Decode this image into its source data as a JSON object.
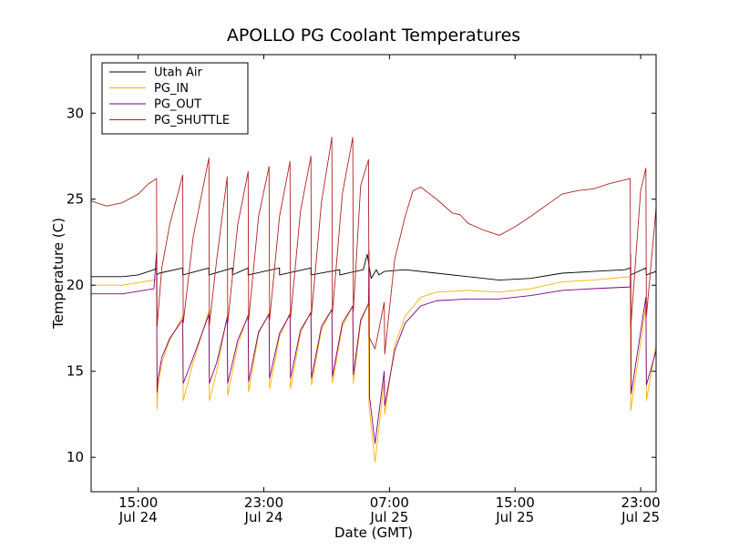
{
  "chart_data": {
    "type": "line",
    "title": "APOLLO PG Coolant Temperatures",
    "xlabel": "Date (GMT)",
    "ylabel": "Temperature (C)",
    "xlim": [
      "2009-07-24 12:00",
      "2009-07-25 23:59"
    ],
    "ylim": [
      8,
      33.4
    ],
    "grid": false,
    "legend_position": "top-left",
    "x_ticks": [
      {
        "x": "2009-07-24 15:00",
        "label": [
          "15:00",
          "Jul 24"
        ]
      },
      {
        "x": "2009-07-24 23:00",
        "label": [
          "23:00",
          "Jul 24"
        ]
      },
      {
        "x": "2009-07-25 07:00",
        "label": [
          "07:00",
          "Jul 25"
        ]
      },
      {
        "x": "2009-07-25 15:00",
        "label": [
          "15:00",
          "Jul 25"
        ]
      },
      {
        "x": "2009-07-25 23:00",
        "label": [
          "23:00",
          "Jul 25"
        ]
      }
    ],
    "y_ticks": [
      {
        "y": 10,
        "label": "10"
      },
      {
        "y": 15,
        "label": "15"
      },
      {
        "y": 20,
        "label": "20"
      },
      {
        "y": 25,
        "label": "25"
      },
      {
        "y": 30,
        "label": "30"
      }
    ],
    "x_point_format": "YYYY-MM-DD HH:MM",
    "series": [
      {
        "name": "Utah Air",
        "color": "#000000",
        "points": [
          [
            "2009-07-24 12:00",
            20.5
          ],
          [
            "2009-07-24 13:00",
            20.5
          ],
          [
            "2009-07-24 14:00",
            20.5
          ],
          [
            "2009-07-24 15:00",
            20.6
          ],
          [
            "2009-07-24 16:00",
            20.9
          ],
          [
            "2009-07-24 16:10",
            21.0
          ],
          [
            "2009-07-24 16:10",
            20.6
          ],
          [
            "2009-07-24 16:20",
            20.7
          ],
          [
            "2009-07-24 17:50",
            21.0
          ],
          [
            "2009-07-24 17:50",
            20.6
          ],
          [
            "2009-07-24 19:30",
            21.0
          ],
          [
            "2009-07-24 19:30",
            20.6
          ],
          [
            "2009-07-24 21:00",
            21.0
          ],
          [
            "2009-07-24 21:00",
            20.6
          ],
          [
            "2009-07-24 22:00",
            21.0
          ],
          [
            "2009-07-24 22:00",
            20.6
          ],
          [
            "2009-07-25 00:00",
            21.0
          ],
          [
            "2009-07-25 00:00",
            20.6
          ],
          [
            "2009-07-25 02:00",
            21.0
          ],
          [
            "2009-07-25 02:00",
            20.6
          ],
          [
            "2009-07-25 03:50",
            20.9
          ],
          [
            "2009-07-25 03:50",
            20.6
          ],
          [
            "2009-07-25 05:20",
            20.9
          ],
          [
            "2009-07-25 05:35",
            21.8
          ],
          [
            "2009-07-25 05:50",
            20.4
          ],
          [
            "2009-07-25 06:10",
            20.9
          ],
          [
            "2009-07-25 06:20",
            20.6
          ],
          [
            "2009-07-25 06:40",
            20.8
          ],
          [
            "2009-07-25 08:00",
            20.9
          ],
          [
            "2009-07-25 10:00",
            20.7
          ],
          [
            "2009-07-25 12:00",
            20.5
          ],
          [
            "2009-07-25 14:00",
            20.3
          ],
          [
            "2009-07-25 16:00",
            20.4
          ],
          [
            "2009-07-25 18:00",
            20.7
          ],
          [
            "2009-07-25 20:00",
            20.8
          ],
          [
            "2009-07-25 22:00",
            20.9
          ],
          [
            "2009-07-25 22:20",
            21.0
          ],
          [
            "2009-07-25 22:22",
            20.6
          ],
          [
            "2009-07-25 23:20",
            21.0
          ],
          [
            "2009-07-25 23:22",
            20.6
          ],
          [
            "2009-07-25 23:59",
            20.8
          ]
        ]
      },
      {
        "name": "PG_IN",
        "color": "#ffb000",
        "points": [
          [
            "2009-07-24 12:00",
            20.0
          ],
          [
            "2009-07-24 14:00",
            20.0
          ],
          [
            "2009-07-24 16:00",
            20.3
          ],
          [
            "2009-07-24 16:10",
            20.4
          ],
          [
            "2009-07-24 16:12",
            12.8
          ],
          [
            "2009-07-24 16:15",
            14.0
          ],
          [
            "2009-07-24 16:30",
            15.5
          ],
          [
            "2009-07-24 17:00",
            16.8
          ],
          [
            "2009-07-24 17:50",
            18.2
          ],
          [
            "2009-07-24 17:52",
            13.3
          ],
          [
            "2009-07-24 18:30",
            15.5
          ],
          [
            "2009-07-24 19:30",
            18.5
          ],
          [
            "2009-07-24 19:32",
            13.3
          ],
          [
            "2009-07-24 20:00",
            15.0
          ],
          [
            "2009-07-24 20:40",
            18.2
          ],
          [
            "2009-07-24 20:42",
            13.6
          ],
          [
            "2009-07-24 21:20",
            16.5
          ],
          [
            "2009-07-24 22:00",
            18.3
          ],
          [
            "2009-07-24 22:02",
            13.8
          ],
          [
            "2009-07-24 22:40",
            17.2
          ],
          [
            "2009-07-24 23:20",
            18.4
          ],
          [
            "2009-07-24 23:22",
            14.0
          ],
          [
            "2009-07-25 00:00",
            17.0
          ],
          [
            "2009-07-25 00:40",
            18.4
          ],
          [
            "2009-07-25 00:42",
            14.0
          ],
          [
            "2009-07-25 01:20",
            17.2
          ],
          [
            "2009-07-25 02:00",
            18.5
          ],
          [
            "2009-07-25 02:02",
            14.2
          ],
          [
            "2009-07-25 02:40",
            17.4
          ],
          [
            "2009-07-25 03:20",
            18.6
          ],
          [
            "2009-07-25 03:22",
            14.3
          ],
          [
            "2009-07-25 04:00",
            17.6
          ],
          [
            "2009-07-25 04:40",
            18.8
          ],
          [
            "2009-07-25 04:42",
            14.3
          ],
          [
            "2009-07-25 05:10",
            17.8
          ],
          [
            "2009-07-25 05:40",
            19.0
          ],
          [
            "2009-07-25 05:42",
            13.0
          ],
          [
            "2009-07-25 06:05",
            9.7
          ],
          [
            "2009-07-25 06:40",
            14.5
          ],
          [
            "2009-07-25 06:42",
            12.5
          ],
          [
            "2009-07-25 07:20",
            16.5
          ],
          [
            "2009-07-25 08:00",
            18.2
          ],
          [
            "2009-07-25 09:00",
            19.3
          ],
          [
            "2009-07-25 10:00",
            19.6
          ],
          [
            "2009-07-25 12:00",
            19.7
          ],
          [
            "2009-07-25 14:00",
            19.6
          ],
          [
            "2009-07-25 16:00",
            19.8
          ],
          [
            "2009-07-25 18:00",
            20.2
          ],
          [
            "2009-07-25 20:00",
            20.3
          ],
          [
            "2009-07-25 22:20",
            20.5
          ],
          [
            "2009-07-25 22:22",
            12.7
          ],
          [
            "2009-07-25 23:20",
            18.8
          ],
          [
            "2009-07-25 23:22",
            13.3
          ],
          [
            "2009-07-25 23:59",
            16.5
          ]
        ]
      },
      {
        "name": "PG_OUT",
        "color": "#800080",
        "points": [
          [
            "2009-07-24 12:00",
            19.5
          ],
          [
            "2009-07-24 14:00",
            19.5
          ],
          [
            "2009-07-24 16:00",
            19.8
          ],
          [
            "2009-07-24 16:10",
            21.9
          ],
          [
            "2009-07-24 16:12",
            13.8
          ],
          [
            "2009-07-24 16:15",
            14.5
          ],
          [
            "2009-07-24 16:30",
            15.8
          ],
          [
            "2009-07-24 17:00",
            16.9
          ],
          [
            "2009-07-24 17:50",
            18.0
          ],
          [
            "2009-07-24 17:52",
            14.3
          ],
          [
            "2009-07-24 18:30",
            15.8
          ],
          [
            "2009-07-24 19:30",
            18.3
          ],
          [
            "2009-07-24 19:32",
            14.3
          ],
          [
            "2009-07-24 20:00",
            15.5
          ],
          [
            "2009-07-24 20:40",
            18.1
          ],
          [
            "2009-07-24 20:42",
            14.3
          ],
          [
            "2009-07-24 21:20",
            16.8
          ],
          [
            "2009-07-24 22:00",
            18.2
          ],
          [
            "2009-07-24 22:02",
            14.4
          ],
          [
            "2009-07-24 22:40",
            17.3
          ],
          [
            "2009-07-24 23:20",
            18.3
          ],
          [
            "2009-07-24 23:22",
            14.6
          ],
          [
            "2009-07-25 00:00",
            17.2
          ],
          [
            "2009-07-25 00:40",
            18.3
          ],
          [
            "2009-07-25 00:42",
            14.6
          ],
          [
            "2009-07-25 01:20",
            17.4
          ],
          [
            "2009-07-25 02:00",
            18.4
          ],
          [
            "2009-07-25 02:02",
            14.6
          ],
          [
            "2009-07-25 02:40",
            17.6
          ],
          [
            "2009-07-25 03:20",
            18.6
          ],
          [
            "2009-07-25 03:22",
            14.7
          ],
          [
            "2009-07-25 04:00",
            17.8
          ],
          [
            "2009-07-25 04:40",
            18.8
          ],
          [
            "2009-07-25 04:42",
            14.8
          ],
          [
            "2009-07-25 05:10",
            18.0
          ],
          [
            "2009-07-25 05:40",
            18.9
          ],
          [
            "2009-07-25 05:42",
            22.0
          ],
          [
            "2009-07-25 05:44",
            13.5
          ],
          [
            "2009-07-25 06:05",
            10.8
          ],
          [
            "2009-07-25 06:40",
            15.0
          ],
          [
            "2009-07-25 06:42",
            13.0
          ],
          [
            "2009-07-25 07:20",
            16.2
          ],
          [
            "2009-07-25 08:00",
            17.8
          ],
          [
            "2009-07-25 09:00",
            18.8
          ],
          [
            "2009-07-25 10:00",
            19.1
          ],
          [
            "2009-07-25 12:00",
            19.2
          ],
          [
            "2009-07-25 14:00",
            19.2
          ],
          [
            "2009-07-25 16:00",
            19.4
          ],
          [
            "2009-07-25 18:00",
            19.7
          ],
          [
            "2009-07-25 20:00",
            19.8
          ],
          [
            "2009-07-25 22:20",
            19.9
          ],
          [
            "2009-07-25 22:22",
            21.8
          ],
          [
            "2009-07-25 22:24",
            13.7
          ],
          [
            "2009-07-25 23:20",
            19.3
          ],
          [
            "2009-07-25 23:22",
            14.2
          ],
          [
            "2009-07-25 23:59",
            16.2
          ]
        ]
      },
      {
        "name": "PG_SHUTTLE",
        "color": "#b22222",
        "points": [
          [
            "2009-07-24 12:00",
            24.9
          ],
          [
            "2009-07-24 13:00",
            24.6
          ],
          [
            "2009-07-24 14:00",
            24.8
          ],
          [
            "2009-07-24 15:00",
            25.3
          ],
          [
            "2009-07-24 15:40",
            25.9
          ],
          [
            "2009-07-24 16:10",
            26.2
          ],
          [
            "2009-07-24 16:12",
            17.6
          ],
          [
            "2009-07-24 16:30",
            21.0
          ],
          [
            "2009-07-24 17:00",
            23.5
          ],
          [
            "2009-07-24 17:50",
            26.4
          ],
          [
            "2009-07-24 17:52",
            17.8
          ],
          [
            "2009-07-24 18:30",
            22.8
          ],
          [
            "2009-07-24 19:30",
            27.4
          ],
          [
            "2009-07-24 19:32",
            17.7
          ],
          [
            "2009-07-24 20:00",
            21.5
          ],
          [
            "2009-07-24 20:40",
            26.3
          ],
          [
            "2009-07-24 20:42",
            17.8
          ],
          [
            "2009-07-24 21:20",
            23.5
          ],
          [
            "2009-07-24 22:00",
            26.6
          ],
          [
            "2009-07-24 22:02",
            18.0
          ],
          [
            "2009-07-24 22:40",
            24.0
          ],
          [
            "2009-07-24 23:20",
            26.9
          ],
          [
            "2009-07-24 23:22",
            18.0
          ],
          [
            "2009-07-25 00:00",
            24.0
          ],
          [
            "2009-07-25 00:40",
            27.2
          ],
          [
            "2009-07-25 00:42",
            18.1
          ],
          [
            "2009-07-25 01:20",
            24.3
          ],
          [
            "2009-07-25 02:00",
            27.5
          ],
          [
            "2009-07-25 02:02",
            18.3
          ],
          [
            "2009-07-25 02:40",
            24.8
          ],
          [
            "2009-07-25 03:20",
            28.6
          ],
          [
            "2009-07-25 03:22",
            18.4
          ],
          [
            "2009-07-25 04:00",
            25.3
          ],
          [
            "2009-07-25 04:40",
            28.6
          ],
          [
            "2009-07-25 04:42",
            18.5
          ],
          [
            "2009-07-25 05:10",
            25.8
          ],
          [
            "2009-07-25 05:40",
            27.3
          ],
          [
            "2009-07-25 05:42",
            17.0
          ],
          [
            "2009-07-25 06:05",
            16.3
          ],
          [
            "2009-07-25 06:40",
            19.0
          ],
          [
            "2009-07-25 06:42",
            16.0
          ],
          [
            "2009-07-25 07:20",
            21.5
          ],
          [
            "2009-07-25 08:00",
            24.0
          ],
          [
            "2009-07-25 08:30",
            25.5
          ],
          [
            "2009-07-25 09:00",
            25.7
          ],
          [
            "2009-07-25 10:00",
            25.0
          ],
          [
            "2009-07-25 11:00",
            24.2
          ],
          [
            "2009-07-25 11:30",
            24.1
          ],
          [
            "2009-07-25 12:00",
            23.6
          ],
          [
            "2009-07-25 13:00",
            23.2
          ],
          [
            "2009-07-25 14:00",
            22.9
          ],
          [
            "2009-07-25 15:00",
            23.4
          ],
          [
            "2009-07-25 16:00",
            24.0
          ],
          [
            "2009-07-25 18:00",
            25.3
          ],
          [
            "2009-07-25 19:00",
            25.5
          ],
          [
            "2009-07-25 20:00",
            25.6
          ],
          [
            "2009-07-25 21:00",
            25.9
          ],
          [
            "2009-07-25 22:20",
            26.2
          ],
          [
            "2009-07-25 22:22",
            17.5
          ],
          [
            "2009-07-25 23:00",
            25.5
          ],
          [
            "2009-07-25 23:20",
            26.8
          ],
          [
            "2009-07-25 23:22",
            18.2
          ],
          [
            "2009-07-25 23:59",
            24.5
          ]
        ]
      }
    ]
  }
}
